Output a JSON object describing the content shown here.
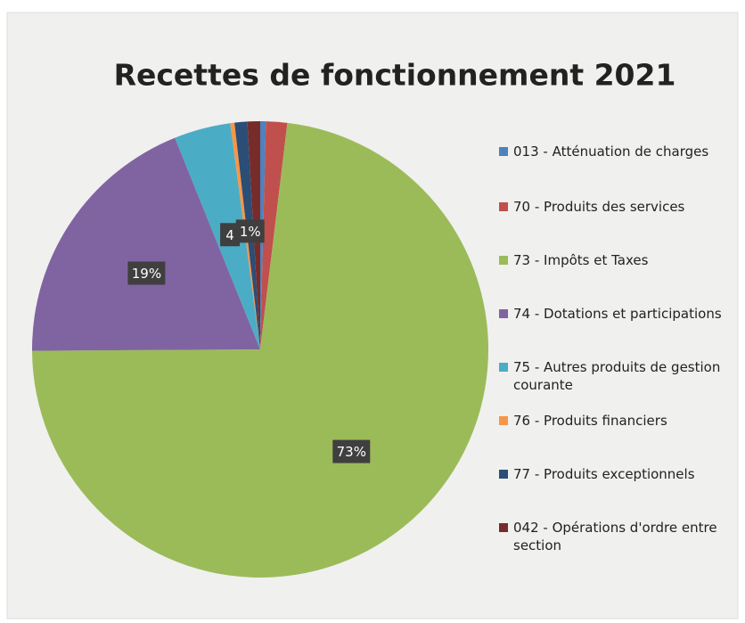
{
  "chart_data": {
    "type": "pie",
    "title": "Recettes de fonctionnement 2021",
    "categories": [
      "013 - Atténuation de charges",
      "70 - Produits des services",
      "73 - Impôts et Taxes",
      "74 - Dotations et participations",
      "75 - Autres produits de gestion courante",
      "76 - Produits financiers",
      "77 - Produits exceptionnels",
      "042 - Opérations d'ordre entre section"
    ],
    "values": [
      0.4,
      1.5,
      73,
      19,
      4,
      0.3,
      0.9,
      0.9
    ],
    "value_labels": [
      null,
      null,
      "73%",
      "19%",
      "4",
      null,
      "1%",
      null
    ],
    "colors": [
      "#4f81bd",
      "#c0504d",
      "#9bbb59",
      "#8064a2",
      "#4bacc6",
      "#f79646",
      "#2c4d75",
      "#772c2a"
    ],
    "legend": "right"
  }
}
